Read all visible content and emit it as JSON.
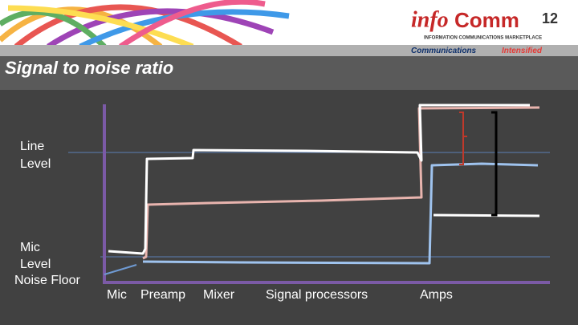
{
  "header": {
    "title": "Signal to noise ratio",
    "logo": {
      "info": "info",
      "comm": "Comm",
      "number": "12",
      "subline": "INFORMATION COMMUNICATIONS MARKETPLACE"
    },
    "tagline": {
      "first": "Communications",
      "second": "Intensified"
    }
  },
  "levels": {
    "line_level": [
      "Line",
      "Level"
    ],
    "mic_level": [
      "Mic",
      "Level"
    ],
    "noise_floor": "Noise Floor"
  },
  "stages": [
    "Mic",
    "Preamp",
    "Mixer",
    "Signal processors",
    "Amps"
  ]
}
